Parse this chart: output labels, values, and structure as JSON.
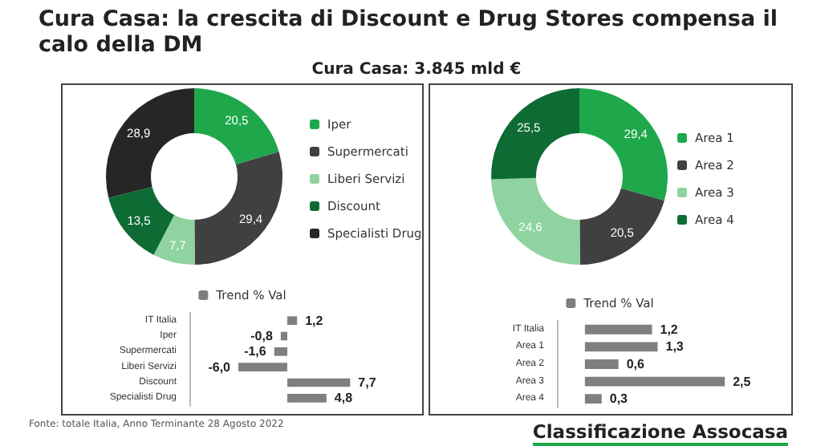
{
  "chart_data": [
    {
      "type": "donut",
      "title": "Cura Casa: la crescita di Discount e Drug Stores compensa il calo della DM",
      "subtitle": "Cura Casa: 3.845 mld €",
      "categories": [
        "Iper",
        "Supermercati",
        "Liberi Servizi",
        "Discount",
        "Specialisti Drug"
      ],
      "values": [
        20.5,
        29.4,
        7.7,
        13.5,
        28.9
      ],
      "value_labels": [
        "20,5",
        "29,4",
        "7,7",
        "13,5",
        "28,9"
      ],
      "colors": [
        "#1ea84b",
        "#404040",
        "#8fd3a0",
        "#0e6b34",
        "#262626"
      ],
      "legend": "right"
    },
    {
      "type": "bar",
      "orientation": "horizontal",
      "categories": [
        "IT Italia",
        "Iper",
        "Supermercati",
        "Liberi Servizi",
        "Discount",
        "Specialisti Drug"
      ],
      "series": [
        {
          "name": "Trend % Val",
          "color": "#7f7f7f",
          "values": [
            1.2,
            -0.8,
            -1.6,
            -6.0,
            7.7,
            4.8
          ],
          "value_labels": [
            "1,2",
            "-0,8",
            "-1,6",
            "-6,0",
            "7,7",
            "4,8"
          ]
        }
      ],
      "legend": "top",
      "annotations": [
        "Fonte: totale Italia, Anno Terminante 28 Agosto 2022"
      ]
    },
    {
      "type": "donut",
      "categories": [
        "Area 1",
        "Area 2",
        "Area 3",
        "Area 4"
      ],
      "values": [
        29.4,
        20.5,
        24.6,
        25.5
      ],
      "value_labels": [
        "29,4",
        "20,5",
        "24,6",
        "25,5"
      ],
      "colors": [
        "#1ea84b",
        "#404040",
        "#8fd3a0",
        "#0e6b34"
      ],
      "legend": "right"
    },
    {
      "type": "bar",
      "orientation": "horizontal",
      "categories": [
        "IT Italia",
        "Area 1",
        "Area 2",
        "Area 3",
        "Area 4"
      ],
      "series": [
        {
          "name": "Trend % Val",
          "color": "#7f7f7f",
          "values": [
            1.2,
            1.3,
            0.6,
            2.5,
            0.3
          ],
          "value_labels": [
            "1,2",
            "1,3",
            "0,6",
            "2,5",
            "0,3"
          ]
        }
      ],
      "legend": "top",
      "annotations": [
        "Classificazione Assocasa"
      ]
    }
  ]
}
